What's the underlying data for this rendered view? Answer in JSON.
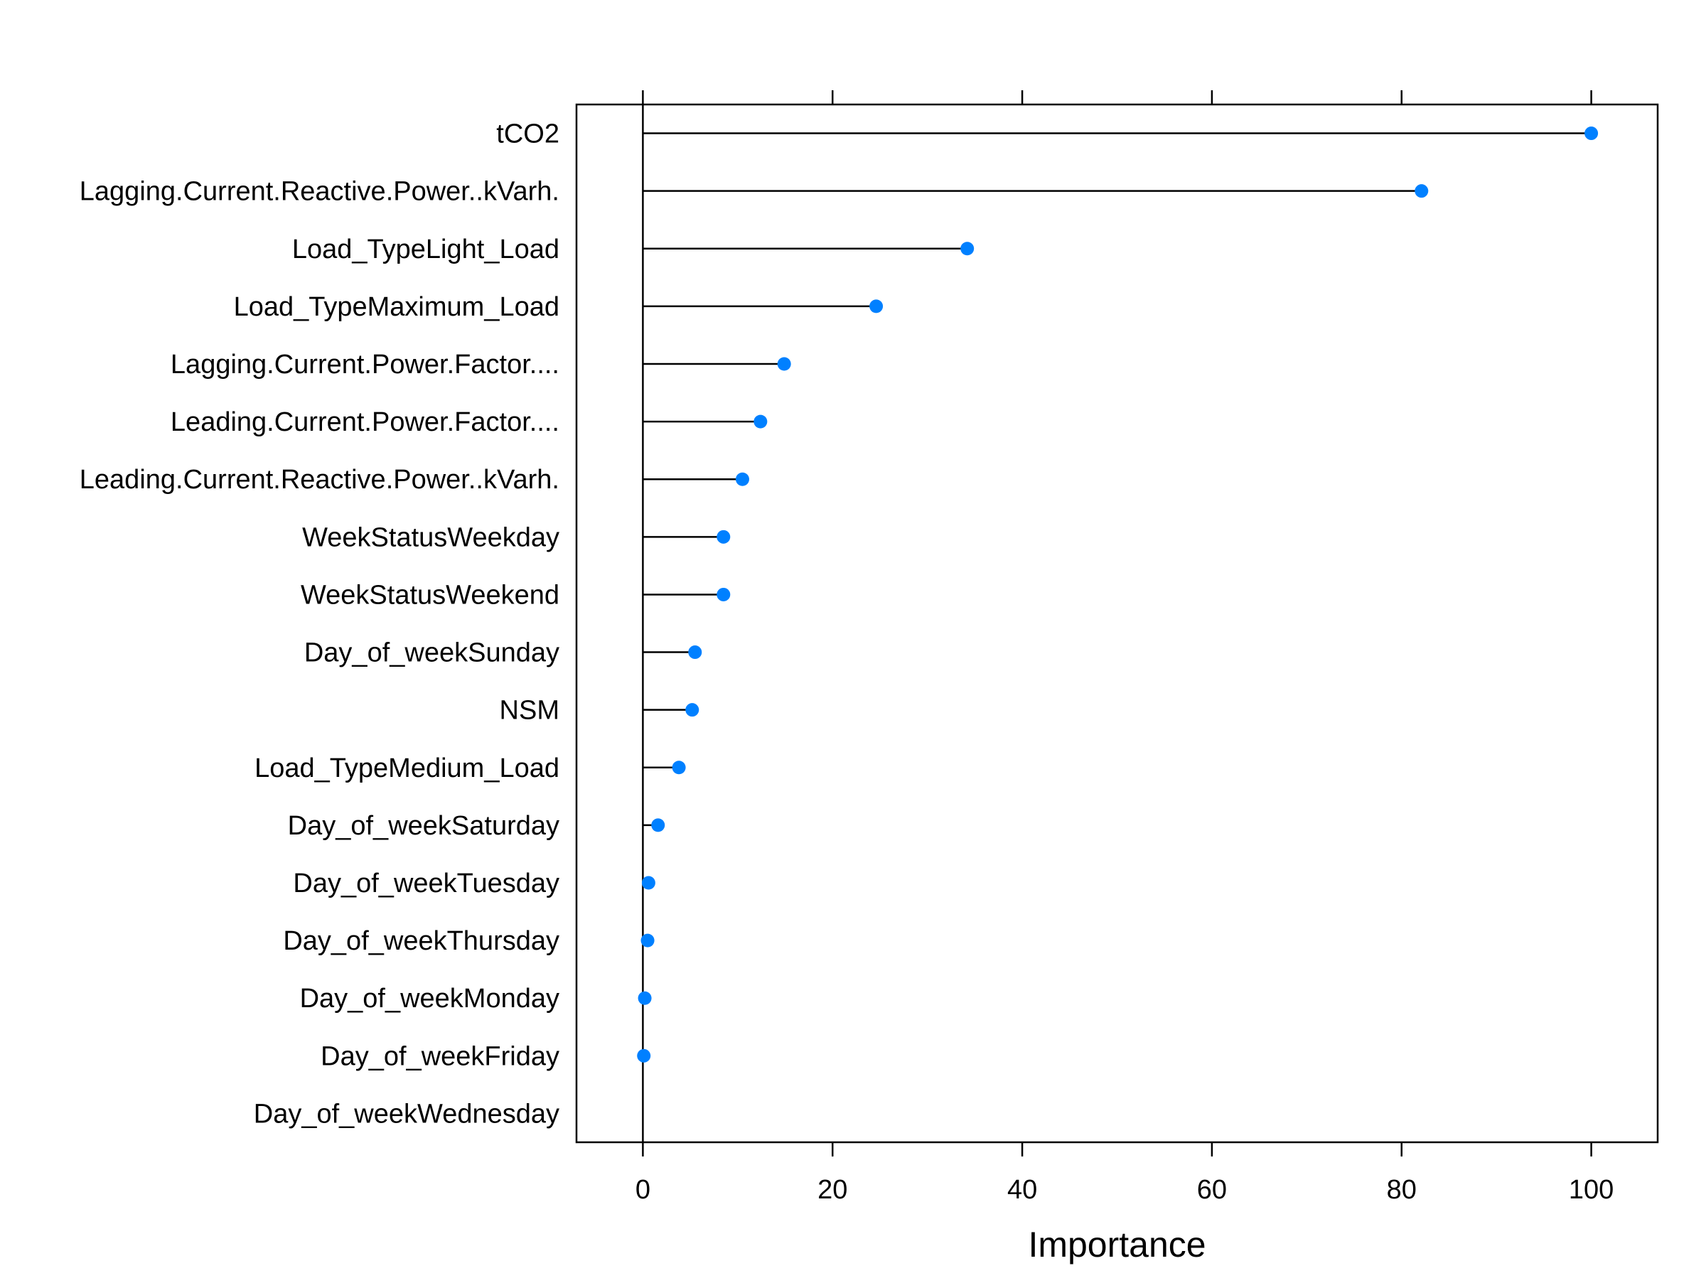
{
  "chart_data": {
    "type": "dot",
    "xlabel": "Importance",
    "ylabel": "",
    "xlim": [
      -7,
      107
    ],
    "x_ticks": [
      0,
      20,
      40,
      60,
      80,
      100
    ],
    "x_tick_labels": [
      "0",
      "20",
      "40",
      "60",
      "80",
      "100"
    ],
    "grid": false,
    "series": [
      {
        "color": "#0080FF",
        "categories": [
          "tCO2",
          "Lagging.Current.Reactive.Power..kVarh.",
          "Load_TypeLight_Load",
          "Load_TypeMaximum_Load",
          "Lagging.Current.Power.Factor....",
          "Leading.Current.Power.Factor....",
          "Leading.Current.Reactive.Power..kVarh.",
          "WeekStatusWeekday",
          "WeekStatusWeekend",
          "Day_of_weekSunday",
          "NSM",
          "Load_TypeMedium_Load",
          "Day_of_weekSaturday",
          "Day_of_weekTuesday",
          "Day_of_weekThursday",
          "Day_of_weekMonday",
          "Day_of_weekFriday",
          "Day_of_weekWednesday"
        ],
        "values": [
          100,
          82.1,
          34.2,
          24.6,
          14.9,
          12.4,
          10.5,
          8.5,
          8.5,
          5.5,
          5.2,
          3.8,
          1.6,
          0.6,
          0.5,
          0.2,
          0.1,
          0
        ]
      }
    ]
  }
}
